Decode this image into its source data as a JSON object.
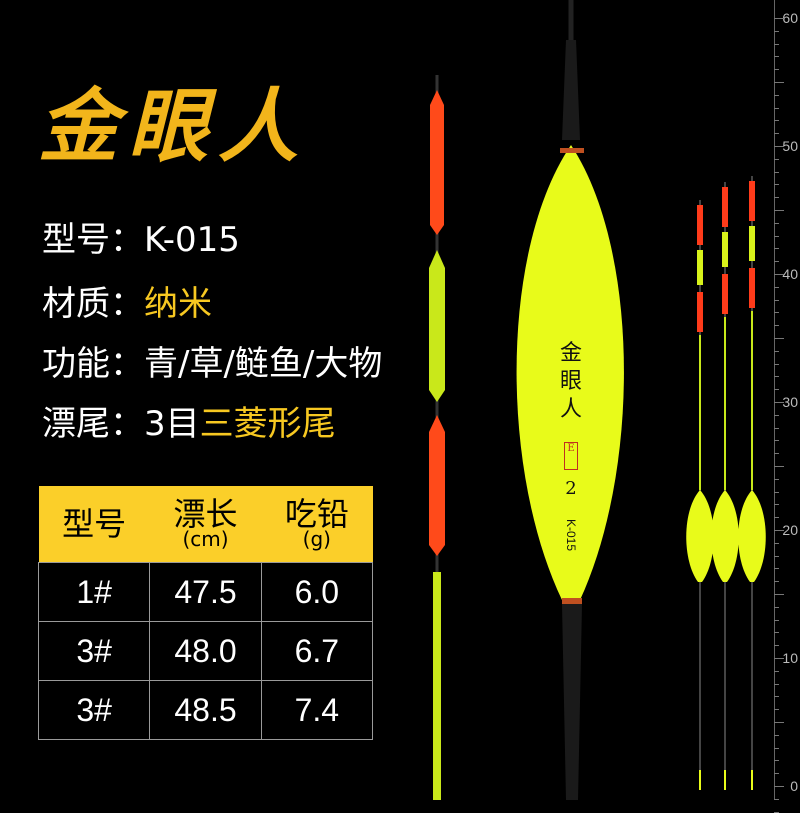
{
  "brand": "金眼人",
  "specs": [
    {
      "label": "型号：",
      "value": "K-015"
    },
    {
      "label": "材质：",
      "value": "纳米"
    },
    {
      "label": "功能：",
      "value": "青/草/鲢鱼/大物"
    },
    {
      "label": "漂尾：",
      "value": "3目",
      "value_highlight": "三菱形尾"
    }
  ],
  "table": {
    "headers": [
      {
        "title": "型号",
        "unit": ""
      },
      {
        "title": "漂长",
        "unit": "(cm)"
      },
      {
        "title": "吃铅",
        "unit": "(g)"
      }
    ],
    "rows": [
      [
        "1#",
        "47.5",
        "6.0"
      ],
      [
        "3#",
        "48.0",
        "6.7"
      ],
      [
        "3#",
        "48.5",
        "7.4"
      ]
    ]
  },
  "float_label": {
    "brand": "金眼人",
    "seal": "E",
    "number": "2",
    "model": "K-015"
  },
  "ruler": [
    "60",
    "50",
    "40",
    "30",
    "20",
    "10",
    "0"
  ],
  "colors": {
    "brand": "#f2b51b",
    "float": "#e8fb1a",
    "tip": "#ff4a1a",
    "header": "#fbcf29"
  }
}
